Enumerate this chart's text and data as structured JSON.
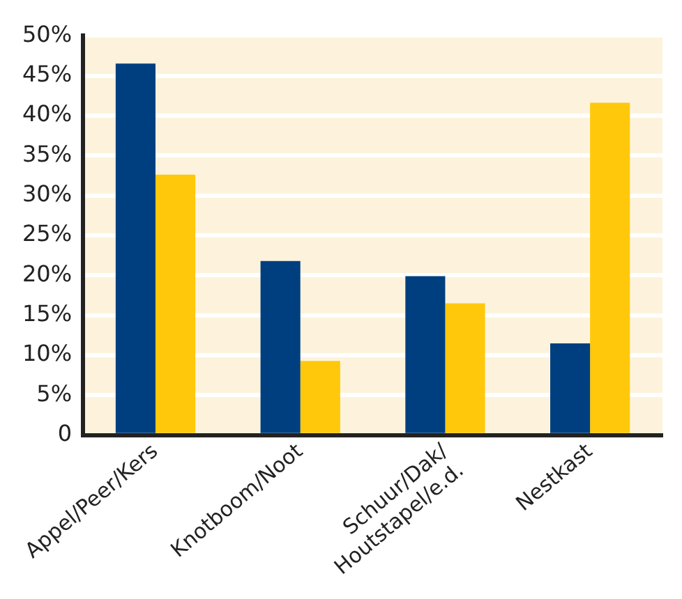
{
  "chart_data": {
    "type": "bar",
    "categories": [
      "Appel/Peer/Kers",
      "Knotboom/Noot",
      "Schuur/Dak/\nHoutstapel/e.d.",
      "Nestkast"
    ],
    "series": [
      {
        "color": "#003f7f",
        "values": [
          46.5,
          21.8,
          19.9,
          11.5
        ]
      },
      {
        "color": "#ffc80a",
        "values": [
          32.6,
          9.3,
          16.5,
          41.6
        ]
      }
    ],
    "ylim": [
      0,
      50
    ],
    "yticks": [
      0,
      {
        "value": 5,
        "label": "5%"
      },
      {
        "value": 10,
        "label": "10%"
      },
      {
        "value": 15,
        "label": "15%"
      },
      {
        "value": 20,
        "label": "20%"
      },
      {
        "value": 25,
        "label": "25%"
      },
      {
        "value": 30,
        "label": "30%"
      },
      {
        "value": 35,
        "label": "35%"
      },
      {
        "value": 40,
        "label": "40%"
      },
      {
        "value": 45,
        "label": "45%"
      },
      {
        "value": 50,
        "label": "50%"
      }
    ],
    "grid": "y",
    "legend": false
  }
}
